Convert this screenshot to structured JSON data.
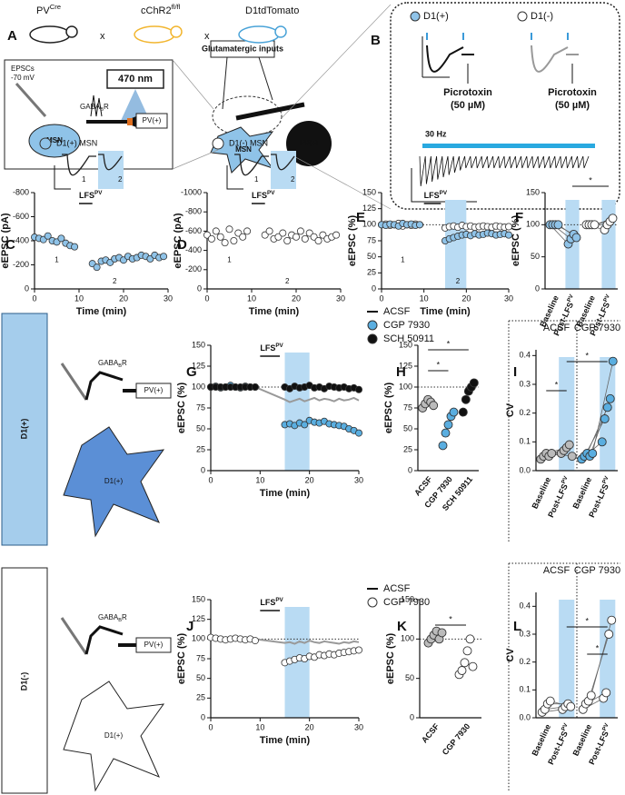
{
  "figure": {
    "A": {
      "letter": "A",
      "mice": [
        {
          "label": "PV",
          "sup": "Cre"
        },
        {
          "label": "cChR2",
          "sup": "fl/fl"
        },
        "D1tdTomato"
      ],
      "cross": "x",
      "epscs": "EPSCs",
      "holding": "-70 mV",
      "light": "470 nm",
      "receptor": {
        "label": "GABA",
        "sub": "B",
        "end": "R"
      },
      "pv": "PV(+)",
      "msn": "MSN",
      "inputs": "Glutamatergic inputs"
    },
    "B": {
      "letter": "B",
      "legend": [
        "D1(+)",
        "D1(-)"
      ],
      "drug": "Picrotoxin",
      "dose": "(50 µM)",
      "freq": "30 Hz"
    },
    "rows": {
      "pos": "D1(+)",
      "neg": "D1(-)",
      "cell": "D1(+)",
      "pv": "PV(+)",
      "receptor": {
        "label": "GABA",
        "sub": "B",
        "end": "R"
      }
    }
  },
  "chart_data": [
    {
      "letter": "C",
      "type": "scatter",
      "title": "D1(+) MSN",
      "title_color": "#8fc3e8",
      "epochs": [
        "1",
        "2"
      ],
      "ylabel": "eEPSC (pA)",
      "xlabel": "Time (min)",
      "stim_label": {
        "label": "LFS",
        "sup": "PV"
      },
      "stim": [
        10,
        13
      ],
      "xlim": [
        0,
        30
      ],
      "ylim": [
        0,
        -800
      ],
      "xticks": [
        0,
        10,
        20,
        30
      ],
      "yticks": [
        -800,
        -600,
        -400,
        -200,
        0
      ],
      "series": [
        {
          "color": "#8fc3e8",
          "x": [
            0,
            1,
            2,
            3,
            4,
            5,
            6,
            7,
            8,
            9,
            13,
            14,
            15,
            16,
            17,
            18,
            19,
            20,
            21,
            22,
            23,
            24,
            25,
            26,
            27,
            28,
            29
          ],
          "values": [
            -430,
            -420,
            -410,
            -440,
            -400,
            -390,
            -420,
            -380,
            -360,
            -350,
            -210,
            -180,
            -230,
            -240,
            -220,
            -250,
            -260,
            -240,
            -270,
            -250,
            -260,
            -280,
            -270,
            -250,
            -280,
            -260,
            -270
          ]
        }
      ]
    },
    {
      "letter": "D",
      "type": "scatter",
      "title": "D1(-) MSN",
      "title_color": "#ffffff",
      "epochs": [
        "1",
        "2"
      ],
      "ylabel": "eEPSC (pA)",
      "xlabel": "Time (min)",
      "stim_label": {
        "label": "LFS",
        "sup": "PV"
      },
      "stim": [
        10,
        13
      ],
      "xlim": [
        0,
        30
      ],
      "ylim": [
        0,
        -1000
      ],
      "xticks": [
        0,
        10,
        20,
        30
      ],
      "yticks": [
        -1000,
        -800,
        -600,
        -400,
        -200,
        0
      ],
      "series": [
        {
          "color": "#ffffff",
          "x": [
            0,
            1,
            2,
            3,
            4,
            5,
            6,
            7,
            8,
            9,
            13,
            14,
            15,
            16,
            17,
            18,
            19,
            20,
            21,
            22,
            23,
            24,
            25,
            26,
            27,
            28,
            29
          ],
          "values": [
            -560,
            -520,
            -600,
            -540,
            -480,
            -620,
            -500,
            -580,
            -540,
            -600,
            -560,
            -600,
            -520,
            -540,
            -580,
            -500,
            -560,
            -540,
            -600,
            -520,
            -580,
            -540,
            -500,
            -560,
            -520,
            -540,
            -560
          ]
        }
      ]
    },
    {
      "letter": "E",
      "type": "scatter",
      "epochs": [
        "1",
        "2"
      ],
      "ylabel": "eEPSC (%)",
      "xlabel": "Time (min)",
      "stim_label": {
        "label": "LFS",
        "sup": "PV"
      },
      "stim": [
        10,
        14
      ],
      "highlight": [
        15,
        20
      ],
      "reference": 100,
      "xlim": [
        0,
        30
      ],
      "ylim": [
        0,
        150
      ],
      "xticks": [
        0,
        10,
        20,
        30
      ],
      "yticks": [
        0,
        25,
        50,
        75,
        100,
        125,
        150
      ],
      "series": [
        {
          "color": "#ffffff",
          "x": [
            0,
            1,
            2,
            3,
            4,
            5,
            6,
            7,
            8,
            9,
            15,
            16,
            17,
            18,
            19,
            20,
            21,
            22,
            23,
            24,
            25,
            26,
            27,
            28,
            29,
            30
          ],
          "values": [
            100,
            101,
            99,
            100,
            102,
            98,
            100,
            99,
            101,
            100,
            95,
            97,
            98,
            96,
            99,
            97,
            98,
            96,
            97,
            98,
            97,
            96,
            98,
            97,
            96,
            97
          ]
        },
        {
          "color": "#8fc3e8",
          "x": [
            0,
            1,
            2,
            3,
            4,
            5,
            6,
            7,
            8,
            9,
            15,
            16,
            17,
            18,
            19,
            20,
            21,
            22,
            23,
            24,
            25,
            26,
            27,
            28,
            29,
            30
          ],
          "values": [
            100,
            99,
            101,
            100,
            98,
            102,
            100,
            101,
            99,
            100,
            75,
            78,
            80,
            82,
            84,
            85,
            83,
            86,
            84,
            85,
            87,
            86,
            84,
            85,
            86,
            84
          ]
        }
      ]
    },
    {
      "letter": "F",
      "type": "strip",
      "ylabel": "eEPSC (%)",
      "categories": [
        "Baseline",
        {
          "label": "Post-LFS",
          "sup": "PV"
        },
        "Baseline",
        {
          "label": "Post-LFS",
          "sup": "PV"
        }
      ],
      "shaded": [
        1,
        3
      ],
      "reference": 100,
      "paired": true,
      "colors": [
        "#8fc3e8",
        "#8fc3e8",
        "#ffffff",
        "#ffffff"
      ],
      "ylim": [
        0,
        150
      ],
      "yticks": [
        0,
        50,
        100,
        150
      ],
      "points": [
        [
          100,
          100,
          100,
          100
        ],
        [
          70,
          78,
          85,
          80
        ],
        [
          100,
          100,
          100,
          100
        ],
        [
          92,
          100,
          105,
          110
        ]
      ],
      "sig": [
        "*"
      ]
    },
    {
      "letter": "G",
      "type": "scatter",
      "ylabel": "eEPSC (%)",
      "xlabel": "Time (min)",
      "stim_label": {
        "label": "LFS",
        "sup": "PV"
      },
      "stim": [
        10,
        14
      ],
      "highlight": [
        15,
        20
      ],
      "reference": 100,
      "legend": true,
      "xlim": [
        0,
        30
      ],
      "ylim": [
        0,
        150
      ],
      "xticks": [
        0,
        10,
        20,
        30
      ],
      "yticks": [
        0,
        25,
        50,
        75,
        100,
        125,
        150
      ],
      "series": [
        {
          "name": "ACSF",
          "style": "line",
          "color": "#999999",
          "x": [
            0,
            1,
            2,
            3,
            4,
            5,
            6,
            7,
            8,
            9,
            15,
            16,
            17,
            18,
            19,
            20,
            21,
            22,
            23,
            24,
            25,
            26,
            27,
            28,
            29,
            30
          ],
          "values": [
            100,
            100,
            100,
            100,
            100,
            100,
            100,
            100,
            100,
            100,
            85,
            82,
            84,
            86,
            83,
            85,
            87,
            84,
            86,
            85,
            83,
            86,
            84,
            85,
            87,
            84
          ]
        },
        {
          "name": "CGP 7930",
          "color": "#5aaee0",
          "x": [
            0,
            1,
            2,
            3,
            4,
            5,
            6,
            7,
            8,
            9,
            15,
            16,
            17,
            18,
            19,
            20,
            21,
            22,
            23,
            24,
            25,
            26,
            27,
            28,
            29,
            30
          ],
          "values": [
            100,
            101,
            99,
            100,
            102,
            100,
            99,
            101,
            100,
            100,
            55,
            56,
            54,
            57,
            55,
            60,
            58,
            57,
            59,
            56,
            55,
            54,
            53,
            50,
            48,
            45
          ]
        },
        {
          "name": "SCH 50911",
          "color": "#111111",
          "x": [
            0,
            1,
            2,
            3,
            4,
            5,
            6,
            7,
            8,
            9,
            15,
            16,
            17,
            18,
            19,
            20,
            21,
            22,
            23,
            24,
            25,
            26,
            27,
            28,
            29,
            30
          ],
          "values": [
            100,
            100,
            100,
            100,
            100,
            100,
            100,
            100,
            100,
            100,
            100,
            98,
            101,
            99,
            100,
            102,
            99,
            100,
            98,
            101,
            100,
            99,
            100,
            98,
            99,
            97
          ]
        }
      ]
    },
    {
      "letter": "H",
      "type": "strip",
      "ylabel": "eEPSC (%)",
      "categories": [
        "ACSF",
        "CGP 7930",
        "SCH 50911"
      ],
      "reference": 100,
      "colors": [
        "#bbbbbb",
        "#5aaee0",
        "#111111"
      ],
      "ylim": [
        0,
        150
      ],
      "yticks": [
        0,
        25,
        50,
        75,
        100,
        125,
        150
      ],
      "points": [
        [
          75,
          80,
          85,
          82,
          78
        ],
        [
          30,
          45,
          55,
          65,
          70
        ],
        [
          70,
          85,
          95,
          100,
          105
        ]
      ],
      "sig": [
        "*",
        "*"
      ]
    },
    {
      "letter": "I",
      "type": "strip",
      "ylabel": "CV",
      "groups": [
        "ACSF",
        "CGP 7930"
      ],
      "categories": [
        "Baseline",
        {
          "label": "Post-LFS",
          "sup": "PV"
        },
        "Baseline",
        {
          "label": "Post-LFS",
          "sup": "PV"
        }
      ],
      "shaded": [
        1,
        3
      ],
      "paired": true,
      "colors": [
        "#bbbbbb",
        "#bbbbbb",
        "#5aaee0",
        "#5aaee0"
      ],
      "ylim": [
        0,
        0.42
      ],
      "yticks": [
        {
          "value": 0,
          "label": "0.0"
        },
        0.1,
        0.2,
        0.3,
        0.4
      ],
      "points": [
        [
          0.04,
          0.05,
          0.06,
          0.05,
          0.06
        ],
        [
          0.06,
          0.07,
          0.08,
          0.09,
          0.05
        ],
        [
          0.04,
          0.05,
          0.06,
          0.05,
          0.06
        ],
        [
          0.1,
          0.18,
          0.22,
          0.25,
          0.38
        ]
      ],
      "sig": [
        "*",
        "*"
      ]
    },
    {
      "letter": "J",
      "type": "scatter",
      "ylabel": "eEPSC (%)",
      "xlabel": "Time (min)",
      "stim_label": {
        "label": "LFS",
        "sup": "PV"
      },
      "stim": [
        10,
        14
      ],
      "highlight": [
        15,
        20
      ],
      "reference": 100,
      "legend": true,
      "xlim": [
        0,
        30
      ],
      "ylim": [
        0,
        150
      ],
      "xticks": [
        0,
        10,
        20,
        30
      ],
      "yticks": [
        0,
        25,
        50,
        75,
        100,
        125,
        150
      ],
      "series": [
        {
          "name": "ACSF",
          "style": "line",
          "color": "#999999",
          "x": [
            0,
            1,
            2,
            3,
            4,
            5,
            6,
            7,
            8,
            9,
            15,
            16,
            17,
            18,
            19,
            20,
            21,
            22,
            23,
            24,
            25,
            26,
            27,
            28,
            29,
            30
          ],
          "values": [
            100,
            100,
            100,
            100,
            100,
            100,
            100,
            100,
            100,
            100,
            95,
            96,
            94,
            97,
            95,
            98,
            96,
            95,
            97,
            96,
            95,
            94,
            96,
            95,
            97,
            96
          ]
        },
        {
          "name": "CGP 7930",
          "color": "#ffffff",
          "x": [
            0,
            1,
            2,
            3,
            4,
            5,
            6,
            7,
            8,
            9,
            15,
            16,
            17,
            18,
            19,
            20,
            21,
            22,
            23,
            24,
            25,
            26,
            27,
            28,
            29,
            30
          ],
          "values": [
            102,
            101,
            100,
            99,
            100,
            101,
            100,
            99,
            100,
            98,
            70,
            72,
            74,
            76,
            75,
            78,
            77,
            80,
            79,
            81,
            80,
            82,
            83,
            84,
            85,
            86
          ]
        }
      ]
    },
    {
      "letter": "K",
      "type": "strip",
      "ylabel": "eEPSC (%)",
      "categories": [
        "ACSF",
        "CGP 7930"
      ],
      "reference": 100,
      "colors": [
        "#bbbbbb",
        "#ffffff"
      ],
      "ylim": [
        0,
        150
      ],
      "yticks": [
        0,
        50,
        100,
        150
      ],
      "points": [
        [
          95,
          100,
          105,
          110,
          100,
          108
        ],
        [
          55,
          60,
          70,
          85,
          100,
          65
        ]
      ],
      "sig": [
        "*"
      ]
    },
    {
      "letter": "L",
      "type": "strip",
      "ylabel": "CV",
      "groups": [
        "ACSF",
        "CGP 7930"
      ],
      "categories": [
        "Baseline",
        {
          "label": "Post-LFS",
          "sup": "PV"
        },
        "Baseline",
        {
          "label": "Post-LFS",
          "sup": "PV"
        }
      ],
      "shaded": [
        1,
        3
      ],
      "paired": true,
      "colors": [
        "#ffffff",
        "#ffffff",
        "#ffffff",
        "#ffffff"
      ],
      "ylim": [
        0,
        0.45
      ],
      "yticks": [
        {
          "value": 0,
          "label": "0.0"
        },
        0.1,
        0.2,
        0.3,
        0.4
      ],
      "points": [
        [
          0.02,
          0.03,
          0.05,
          0.06
        ],
        [
          0.03,
          0.04,
          0.05,
          0.04
        ],
        [
          0.03,
          0.05,
          0.06,
          0.08
        ],
        [
          0.07,
          0.09,
          0.3,
          0.35
        ]
      ],
      "sig": [
        "*",
        "*"
      ]
    }
  ]
}
